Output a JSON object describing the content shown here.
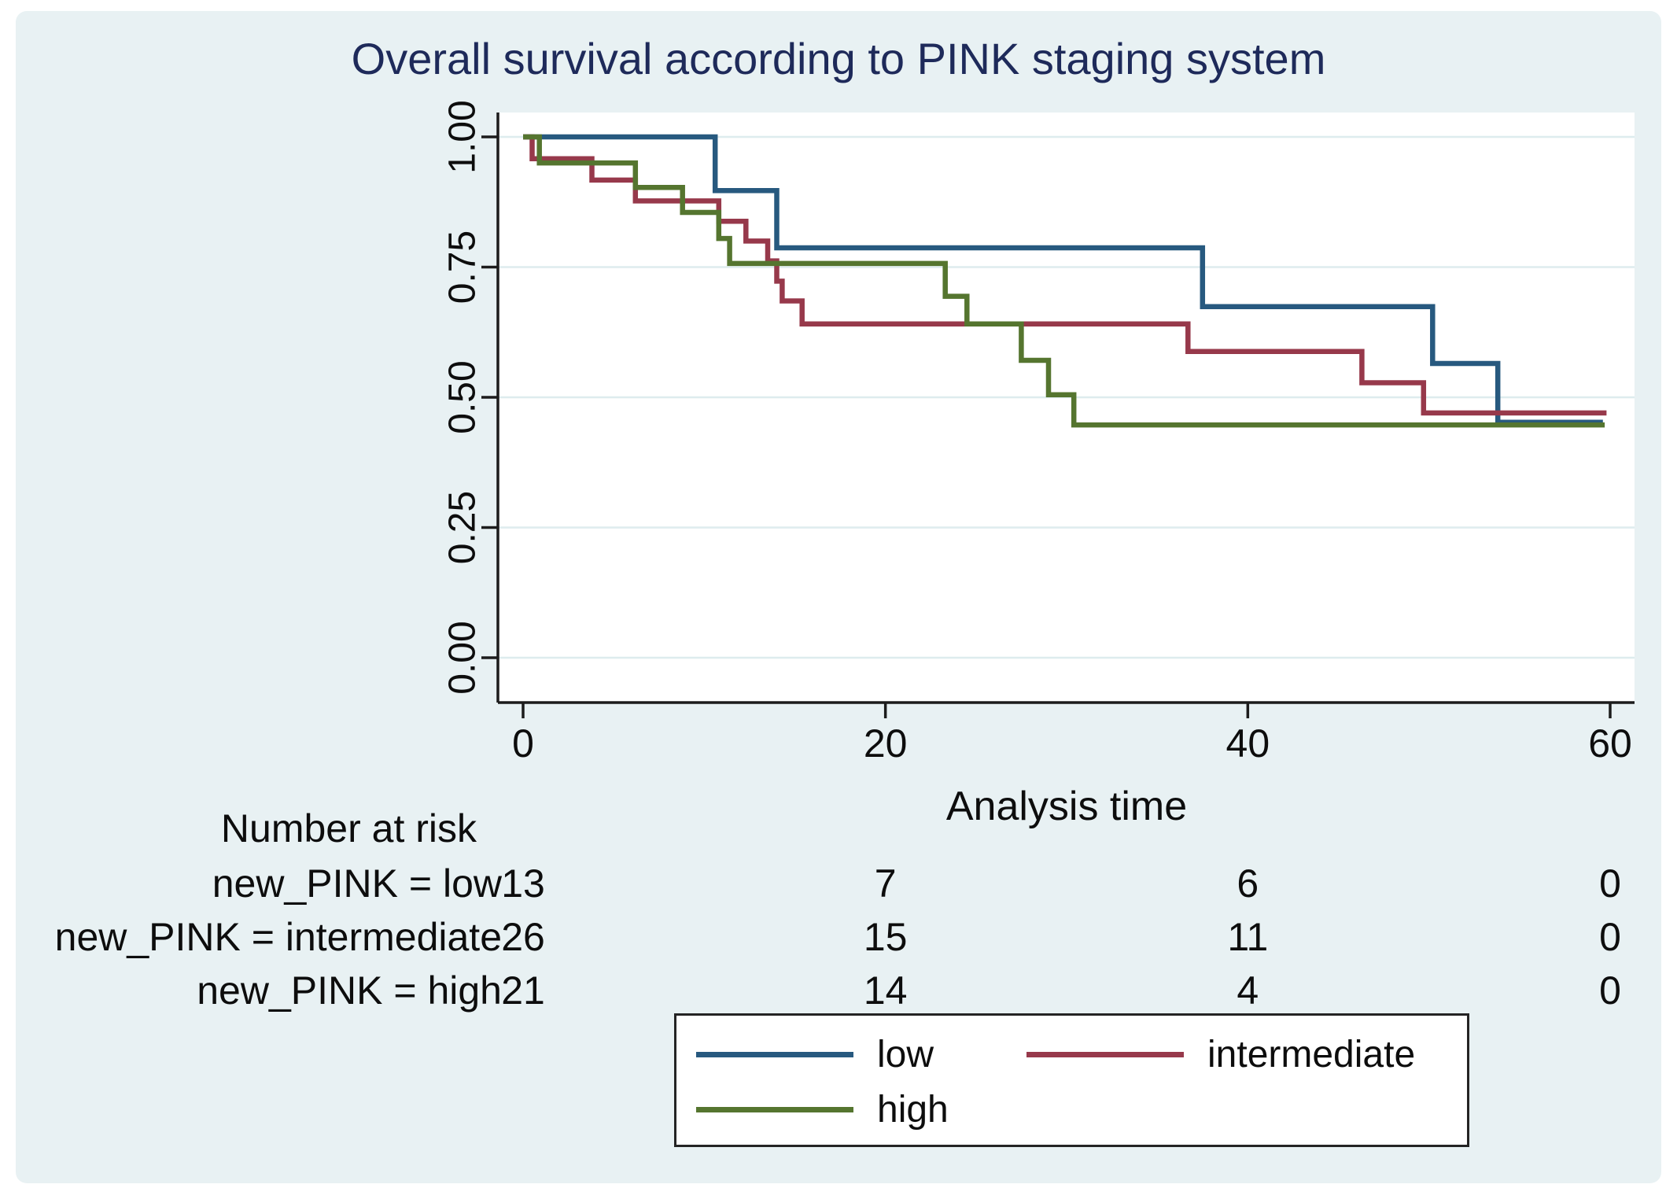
{
  "title": {
    "text": "Overall survival according to PINK staging system",
    "color": "#1e2a5a"
  },
  "colors": {
    "figure_background": "#e8f1f3",
    "plot_background": "#ffffff",
    "gridline": "#deecee",
    "axis": "#1c1c1c",
    "title_text": "#1e2a5a",
    "low": "#27597f",
    "intermediate": "#97394b",
    "high": "#55752f"
  },
  "chart_data": {
    "type": "line",
    "subtype": "kaplan-meier-step",
    "title": "Overall survival according to PINK staging system",
    "xlabel": "Analysis time",
    "ylabel": "",
    "xlim": [
      0,
      60
    ],
    "ylim": [
      0.0,
      1.0
    ],
    "xticks": [
      "0",
      "20",
      "40",
      "60"
    ],
    "xtick_values": [
      0,
      20,
      40,
      60
    ],
    "yticks": [
      "0.00",
      "0.25",
      "0.50",
      "0.75",
      "1.00"
    ],
    "ytick_values": [
      0.0,
      0.25,
      0.5,
      0.75,
      1.0
    ],
    "grid": "horizontal",
    "legend_position": "bottom",
    "series": [
      {
        "name": "low",
        "color": "#27597f",
        "points": [
          [
            0,
            1.0
          ],
          [
            10.6,
            1.0
          ],
          [
            10.6,
            0.897
          ],
          [
            14.0,
            0.897
          ],
          [
            14.0,
            0.787
          ],
          [
            37.5,
            0.787
          ],
          [
            37.5,
            0.674
          ],
          [
            50.2,
            0.674
          ],
          [
            50.2,
            0.565
          ],
          [
            53.8,
            0.565
          ],
          [
            53.8,
            0.452
          ],
          [
            59.6,
            0.452
          ]
        ]
      },
      {
        "name": "intermediate",
        "color": "#97394b",
        "points": [
          [
            0,
            1.0
          ],
          [
            0.5,
            1.0
          ],
          [
            0.5,
            0.958
          ],
          [
            3.8,
            0.958
          ],
          [
            3.8,
            0.917
          ],
          [
            6.2,
            0.917
          ],
          [
            6.2,
            0.877
          ],
          [
            10.8,
            0.877
          ],
          [
            10.8,
            0.838
          ],
          [
            12.3,
            0.838
          ],
          [
            12.3,
            0.8
          ],
          [
            13.5,
            0.8
          ],
          [
            13.5,
            0.762
          ],
          [
            14.0,
            0.762
          ],
          [
            14.0,
            0.723
          ],
          [
            14.3,
            0.723
          ],
          [
            14.3,
            0.685
          ],
          [
            15.4,
            0.685
          ],
          [
            15.4,
            0.641
          ],
          [
            36.7,
            0.641
          ],
          [
            36.7,
            0.588
          ],
          [
            46.3,
            0.588
          ],
          [
            46.3,
            0.528
          ],
          [
            49.7,
            0.528
          ],
          [
            49.7,
            0.47
          ],
          [
            59.8,
            0.47
          ]
        ]
      },
      {
        "name": "high",
        "color": "#55752f",
        "points": [
          [
            0,
            1.0
          ],
          [
            0.9,
            1.0
          ],
          [
            0.9,
            0.95
          ],
          [
            6.2,
            0.95
          ],
          [
            6.2,
            0.903
          ],
          [
            8.8,
            0.903
          ],
          [
            8.8,
            0.855
          ],
          [
            10.8,
            0.855
          ],
          [
            10.8,
            0.805
          ],
          [
            11.4,
            0.805
          ],
          [
            11.4,
            0.757
          ],
          [
            23.3,
            0.757
          ],
          [
            23.3,
            0.694
          ],
          [
            24.5,
            0.694
          ],
          [
            24.5,
            0.641
          ],
          [
            27.5,
            0.641
          ],
          [
            27.5,
            0.571
          ],
          [
            29.0,
            0.571
          ],
          [
            29.0,
            0.505
          ],
          [
            30.4,
            0.505
          ],
          [
            30.4,
            0.447
          ],
          [
            59.7,
            0.447
          ]
        ]
      }
    ]
  },
  "risk_table": {
    "header": "Number at risk",
    "times": [
      0,
      20,
      40,
      60
    ],
    "rows": [
      {
        "label": "new_PINK = low",
        "counts": [
          "13",
          "7",
          "6",
          "0"
        ]
      },
      {
        "label": "new_PINK = intermediate",
        "counts": [
          "26",
          "15",
          "11",
          "0"
        ]
      },
      {
        "label": "new_PINK = high",
        "counts": [
          "21",
          "14",
          "4",
          "0"
        ]
      }
    ]
  },
  "legend": {
    "items": [
      {
        "label": "low",
        "color": "#27597f"
      },
      {
        "label": "intermediate",
        "color": "#97394b"
      },
      {
        "label": "high",
        "color": "#55752f"
      }
    ]
  }
}
